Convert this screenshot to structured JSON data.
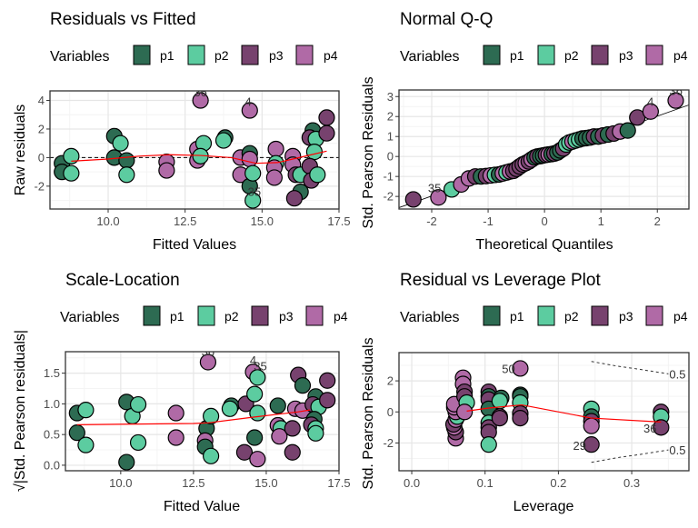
{
  "legend": {
    "title": "Variables",
    "items": [
      {
        "label": "p1",
        "color": "#2d6b52"
      },
      {
        "label": "p2",
        "color": "#5ccca0"
      },
      {
        "label": "p3",
        "color": "#77426e"
      },
      {
        "label": "p4",
        "color": "#b06aa6"
      }
    ]
  },
  "chart_data": [
    {
      "type": "scatter",
      "title": "Residuals vs Fitted",
      "xlabel": "Fitted Values",
      "ylabel": "Raw residuals",
      "xlim": [
        8.11,
        17.5
      ],
      "ylim": [
        -3.6,
        4.67
      ],
      "xticks": [
        10.0,
        12.5,
        15.0,
        17.5
      ],
      "xtick_labels": [
        "10.0",
        "12.5",
        "15.0",
        "17.5"
      ],
      "yticks": [
        -2,
        0,
        2,
        4
      ],
      "ytick_labels": [
        "-2",
        "0",
        "2",
        "4"
      ],
      "grid": true,
      "hline": {
        "y": 0,
        "style": "dashed"
      },
      "points": [
        [
          8.5,
          -0.4,
          0
        ],
        [
          8.5,
          -1.0,
          0
        ],
        [
          8.8,
          0.1,
          1
        ],
        [
          8.8,
          -1.1,
          1
        ],
        [
          10.2,
          1.5,
          0
        ],
        [
          10.4,
          1.0,
          1
        ],
        [
          10.2,
          0.0,
          0
        ],
        [
          10.6,
          -0.2,
          0
        ],
        [
          10.6,
          -1.2,
          1
        ],
        [
          11.9,
          -0.3,
          3
        ],
        [
          11.9,
          -0.9,
          3
        ],
        [
          13.0,
          4.0,
          3
        ],
        [
          12.9,
          0.6,
          3
        ],
        [
          13.1,
          1.0,
          1
        ],
        [
          12.9,
          -0.2,
          3
        ],
        [
          13.0,
          0.1,
          1
        ],
        [
          13.8,
          1.4,
          0
        ],
        [
          13.75,
          1.2,
          1
        ],
        [
          14.3,
          0.0,
          3
        ],
        [
          14.3,
          -1.2,
          3
        ],
        [
          14.6,
          3.3,
          3
        ],
        [
          14.6,
          0.3,
          0
        ],
        [
          14.6,
          -0.1,
          3
        ],
        [
          14.6,
          -2.0,
          0
        ],
        [
          14.7,
          -1.1,
          1
        ],
        [
          14.7,
          -3.0,
          1
        ],
        [
          15.45,
          0.6,
          3
        ],
        [
          15.45,
          -0.4,
          1
        ],
        [
          15.4,
          -0.7,
          3
        ],
        [
          15.4,
          -1.4,
          3
        ],
        [
          16.0,
          0.1,
          3
        ],
        [
          16.0,
          -0.5,
          3
        ],
        [
          16.1,
          -1.2,
          2
        ],
        [
          16.25,
          -1.2,
          1
        ],
        [
          16.25,
          -2.4,
          0
        ],
        [
          16.05,
          -2.85,
          2
        ],
        [
          16.65,
          1.9,
          0
        ],
        [
          16.55,
          1.4,
          2
        ],
        [
          16.75,
          1.3,
          1
        ],
        [
          16.7,
          0.4,
          1
        ],
        [
          16.55,
          -0.6,
          2
        ],
        [
          16.6,
          -1.6,
          2
        ],
        [
          16.8,
          -1.2,
          1
        ],
        [
          17.1,
          2.8,
          2
        ],
        [
          17.1,
          1.7,
          2
        ]
      ],
      "smooth_line": [
        [
          8.8,
          -0.25
        ],
        [
          10,
          -0.1
        ],
        [
          11,
          0.1
        ],
        [
          12,
          0.2
        ],
        [
          13,
          0.15
        ],
        [
          14,
          0.0
        ],
        [
          14.8,
          -0.4
        ],
        [
          15.5,
          -0.35
        ],
        [
          16,
          -0.1
        ],
        [
          16.6,
          0.2
        ],
        [
          17.1,
          0.45
        ]
      ],
      "annotations": [
        {
          "text": "36",
          "x": 13.0,
          "y": 4.6
        },
        {
          "text": "4",
          "x": 14.55,
          "y": 3.95
        },
        {
          "text": "35",
          "x": 14.75,
          "y": -2.35
        }
      ]
    },
    {
      "type": "scatter",
      "title": "Normal Q-Q",
      "xlabel": "Theoretical Quantiles",
      "ylabel": "Std. Pearson Residuals",
      "xlim": [
        -2.58,
        2.56
      ],
      "ylim": [
        -2.63,
        3.33
      ],
      "xticks": [
        -2,
        -1,
        0,
        1,
        2
      ],
      "xtick_labels": [
        "-2",
        "-1",
        "0",
        "1",
        "2"
      ],
      "yticks": [
        -2,
        -1,
        0,
        1,
        2,
        3
      ],
      "ytick_labels": [
        "-2",
        "-1",
        "0",
        "1",
        "2",
        "3"
      ],
      "grid": true,
      "reference_line": {
        "intercept": 0.02,
        "slope": 1.0
      },
      "points": [
        [
          -2.326,
          -2.15,
          2
        ],
        [
          -1.881,
          -2.05,
          3
        ],
        [
          -1.645,
          -1.65,
          1
        ],
        [
          -1.476,
          -1.4,
          3
        ],
        [
          -1.341,
          -1.1,
          3
        ],
        [
          -1.227,
          -1.0,
          2
        ],
        [
          -1.126,
          -1.0,
          0
        ],
        [
          -1.036,
          -0.98,
          2
        ],
        [
          -0.954,
          -0.95,
          3
        ],
        [
          -0.878,
          -0.92,
          1
        ],
        [
          -0.806,
          -0.9,
          0
        ],
        [
          -0.739,
          -0.85,
          3
        ],
        [
          -0.674,
          -0.8,
          1
        ],
        [
          -0.613,
          -0.75,
          3
        ],
        [
          -0.553,
          -0.72,
          2
        ],
        [
          -0.496,
          -0.62,
          2
        ],
        [
          -0.44,
          -0.5,
          2
        ],
        [
          -0.385,
          -0.4,
          2
        ],
        [
          -0.332,
          -0.33,
          3
        ],
        [
          -0.279,
          -0.25,
          2
        ],
        [
          -0.228,
          -0.15,
          3
        ],
        [
          -0.176,
          -0.05,
          0
        ],
        [
          -0.126,
          0.0,
          2
        ],
        [
          -0.075,
          0.02,
          0
        ],
        [
          -0.025,
          0.05,
          0
        ],
        [
          0.025,
          0.08,
          2
        ],
        [
          0.075,
          0.1,
          3
        ],
        [
          0.126,
          0.12,
          0
        ],
        [
          0.176,
          0.15,
          2
        ],
        [
          0.228,
          0.2,
          0
        ],
        [
          0.279,
          0.3,
          0
        ],
        [
          0.332,
          0.4,
          2
        ],
        [
          0.385,
          0.6,
          1
        ],
        [
          0.44,
          0.7,
          1
        ],
        [
          0.496,
          0.75,
          3
        ],
        [
          0.553,
          0.8,
          1
        ],
        [
          0.613,
          0.85,
          1
        ],
        [
          0.674,
          0.9,
          0
        ],
        [
          0.739,
          0.92,
          0
        ],
        [
          0.806,
          0.95,
          0
        ],
        [
          0.878,
          1.0,
          2
        ],
        [
          0.954,
          1.0,
          0
        ],
        [
          1.036,
          1.05,
          2
        ],
        [
          1.126,
          1.1,
          0
        ],
        [
          1.227,
          1.15,
          2
        ],
        [
          1.341,
          1.25,
          3
        ],
        [
          1.476,
          1.3,
          0
        ],
        [
          1.645,
          1.95,
          2
        ],
        [
          1.881,
          2.25,
          3
        ],
        [
          2.326,
          2.8,
          3
        ]
      ],
      "annotations": [
        {
          "text": "35",
          "x": -1.95,
          "y": -1.55
        },
        {
          "text": "4",
          "x": 1.88,
          "y": 2.75
        },
        {
          "text": "36",
          "x": 2.33,
          "y": 3.3
        }
      ]
    },
    {
      "type": "scatter",
      "title": "Scale-Location",
      "xlabel": "Fitted Value",
      "ylabel": "√|Std. Pearson residuals|",
      "xlim": [
        8.1,
        17.5
      ],
      "ylim": [
        -0.09,
        1.85
      ],
      "xticks": [
        10.0,
        12.5,
        15.0,
        17.5
      ],
      "xtick_labels": [
        "10.0",
        "12.5",
        "15.0",
        "17.5"
      ],
      "yticks": [
        0.0,
        0.5,
        1.0,
        1.5
      ],
      "ytick_labels": [
        "0.0",
        "0.5",
        "1.0",
        "1.5"
      ],
      "grid": true,
      "points": [
        [
          8.5,
          0.85,
          0
        ],
        [
          8.5,
          0.53,
          0
        ],
        [
          8.8,
          0.9,
          1
        ],
        [
          8.8,
          0.33,
          1
        ],
        [
          10.2,
          1.03,
          0
        ],
        [
          10.2,
          0.05,
          0
        ],
        [
          10.4,
          0.8,
          1
        ],
        [
          10.6,
          0.99,
          1
        ],
        [
          10.6,
          0.37,
          1
        ],
        [
          11.9,
          0.85,
          3
        ],
        [
          11.9,
          0.45,
          3
        ],
        [
          13.0,
          1.68,
          3
        ],
        [
          12.95,
          0.6,
          0
        ],
        [
          13.1,
          0.8,
          1
        ],
        [
          12.9,
          0.4,
          3
        ],
        [
          12.9,
          0.3,
          0
        ],
        [
          13.1,
          0.15,
          1
        ],
        [
          13.8,
          0.97,
          0
        ],
        [
          13.75,
          0.92,
          1
        ],
        [
          14.3,
          1.0,
          2
        ],
        [
          14.25,
          0.21,
          2
        ],
        [
          14.55,
          1.52,
          3
        ],
        [
          14.7,
          1.43,
          1
        ],
        [
          14.6,
          1.16,
          1
        ],
        [
          14.7,
          0.85,
          1
        ],
        [
          14.6,
          0.45,
          0
        ],
        [
          14.7,
          0.1,
          3
        ],
        [
          15.4,
          0.97,
          0
        ],
        [
          15.4,
          0.65,
          3
        ],
        [
          15.5,
          0.6,
          1
        ],
        [
          15.45,
          0.47,
          3
        ],
        [
          16.0,
          0.92,
          3
        ],
        [
          15.9,
          0.6,
          2
        ],
        [
          15.9,
          0.21,
          2
        ],
        [
          16.1,
          1.47,
          2
        ],
        [
          16.25,
          1.3,
          0
        ],
        [
          16.25,
          0.89,
          3
        ],
        [
          16.7,
          1.12,
          0
        ],
        [
          16.6,
          0.99,
          2
        ],
        [
          16.8,
          0.95,
          1
        ],
        [
          16.65,
          0.75,
          0
        ],
        [
          16.55,
          0.66,
          2
        ],
        [
          16.7,
          0.6,
          1
        ],
        [
          16.7,
          0.52,
          1
        ],
        [
          17.1,
          1.38,
          2
        ],
        [
          17.1,
          1.06,
          2
        ]
      ],
      "smooth_line": [
        [
          8.5,
          0.66
        ],
        [
          12.5,
          0.68
        ],
        [
          13.0,
          0.69
        ],
        [
          14.5,
          0.78
        ],
        [
          16.1,
          0.87
        ],
        [
          16.5,
          0.9
        ]
      ],
      "annotations": [
        {
          "text": "36",
          "x": 13.0,
          "y": 1.86
        },
        {
          "text": "4",
          "x": 14.55,
          "y": 1.72
        },
        {
          "text": "35",
          "x": 14.8,
          "y": 1.62
        }
      ]
    },
    {
      "type": "scatter",
      "title": "Residual vs Leverage Plot",
      "xlabel": "Leverage",
      "ylabel": "Std. Pearson Residuals",
      "xlim": [
        -0.0174,
        0.378
      ],
      "ylim": [
        -3.79,
        3.82
      ],
      "xticks": [
        0.0,
        0.1,
        0.2,
        0.3
      ],
      "xtick_labels": [
        "0.0",
        "0.1",
        "0.2",
        "0.3"
      ],
      "yticks": [
        -2,
        0,
        2
      ],
      "ytick_labels": [
        "-2",
        "0",
        "2"
      ],
      "grid": true,
      "points": [
        [
          0.06,
          -1.7,
          3
        ],
        [
          0.06,
          -1.3,
          2
        ],
        [
          0.058,
          -1.0,
          3
        ],
        [
          0.057,
          -0.8,
          2
        ],
        [
          0.06,
          -0.5,
          3
        ],
        [
          0.062,
          -0.3,
          1
        ],
        [
          0.06,
          0.0,
          3
        ],
        [
          0.058,
          0.3,
          3
        ],
        [
          0.058,
          0.5,
          3
        ],
        [
          0.07,
          2.2,
          3
        ],
        [
          0.07,
          1.8,
          3
        ],
        [
          0.072,
          1.3,
          2
        ],
        [
          0.072,
          1.0,
          2
        ],
        [
          0.075,
          0.6,
          1
        ],
        [
          0.072,
          0.0,
          3
        ],
        [
          0.105,
          1.3,
          2
        ],
        [
          0.105,
          1.0,
          0
        ],
        [
          0.105,
          0.8,
          2
        ],
        [
          0.105,
          0.2,
          0
        ],
        [
          0.105,
          -0.7,
          1
        ],
        [
          0.105,
          -1.0,
          2
        ],
        [
          0.105,
          -1.3,
          2
        ],
        [
          0.105,
          -2.1,
          1
        ],
        [
          0.122,
          0.9,
          0
        ],
        [
          0.12,
          0.7,
          1
        ],
        [
          0.12,
          -0.3,
          3
        ],
        [
          0.12,
          -0.4,
          2
        ],
        [
          0.148,
          2.8,
          3
        ],
        [
          0.148,
          1.1,
          0
        ],
        [
          0.148,
          1.0,
          0
        ],
        [
          0.148,
          0.6,
          1
        ],
        [
          0.148,
          -0.1,
          2
        ],
        [
          0.148,
          -0.4,
          2
        ],
        [
          0.245,
          0.2,
          1
        ],
        [
          0.245,
          -0.3,
          0
        ],
        [
          0.245,
          -0.6,
          2
        ],
        [
          0.245,
          -0.9,
          3
        ],
        [
          0.245,
          -2.1,
          2
        ],
        [
          0.34,
          0.0,
          2
        ],
        [
          0.34,
          -0.3,
          1
        ],
        [
          0.34,
          -1.0,
          2
        ]
      ],
      "smooth_line": [
        [
          0.075,
          0.05
        ],
        [
          0.105,
          0.25
        ],
        [
          0.15,
          0.45
        ],
        [
          0.245,
          -0.4
        ],
        [
          0.34,
          -0.65
        ]
      ],
      "cooks_contours": [
        {
          "label": "0.5",
          "points": [
            [
              0.245,
              3.25
            ],
            [
              0.28,
              2.95
            ],
            [
              0.31,
              2.75
            ],
            [
              0.35,
              2.45
            ]
          ]
        },
        {
          "label": "0.5",
          "points": [
            [
              0.245,
              -3.25
            ],
            [
              0.28,
              -2.95
            ],
            [
              0.31,
              -2.75
            ],
            [
              0.35,
              -2.45
            ]
          ]
        }
      ],
      "annotations": [
        {
          "text": "50",
          "x": 0.132,
          "y": 2.8
        },
        {
          "text": "29",
          "x": 0.229,
          "y": -2.15
        },
        {
          "text": "36",
          "x": 0.325,
          "y": -1.05
        }
      ]
    }
  ]
}
